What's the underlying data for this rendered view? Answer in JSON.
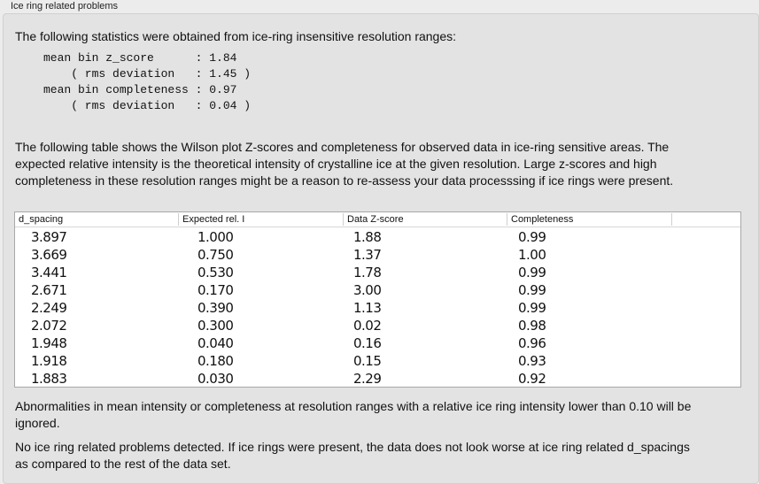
{
  "section_title": "Ice ring related problems",
  "intro": "The following statistics were obtained from ice-ring insensitive resolution ranges:",
  "stats": [
    "mean bin z_score      : 1.84",
    "    ( rms deviation   : 1.45 )",
    "mean bin completeness : 0.97",
    "    ( rms deviation   : 0.04 )"
  ],
  "table_description": "The following table shows the Wilson plot Z-scores and completeness for observed data in ice-ring sensitive areas. The expected relative intensity is the theoretical intensity of crystalline ice at the given resolution. Large z-scores and high completeness in these resolution ranges might be a reason to re-assess your data processsing if ice rings were present.",
  "table": {
    "columns": [
      "d_spacing",
      "Expected rel. I",
      "Data Z-score",
      "Completeness"
    ],
    "rows": [
      [
        "3.897",
        "1.000",
        "1.88",
        "0.99"
      ],
      [
        "3.669",
        "0.750",
        "1.37",
        "1.00"
      ],
      [
        "3.441",
        "0.530",
        "1.78",
        "0.99"
      ],
      [
        "2.671",
        "0.170",
        "3.00",
        "0.99"
      ],
      [
        "2.249",
        "0.390",
        "1.13",
        "0.99"
      ],
      [
        "2.072",
        "0.300",
        "0.02",
        "0.98"
      ],
      [
        "1.948",
        "0.040",
        "0.16",
        "0.96"
      ],
      [
        "1.918",
        "0.180",
        "0.15",
        "0.93"
      ],
      [
        "1.883",
        "0.030",
        "2.29",
        "0.92"
      ]
    ]
  },
  "note": "Abnormalities in mean intensity or completeness at resolution ranges with a relative ice ring intensity lower than 0.10 will be ignored.",
  "conclusion": "No ice ring related problems detected. If ice rings were present, the data does not look worse at ice ring related d_spacings as compared to the rest of the data set."
}
